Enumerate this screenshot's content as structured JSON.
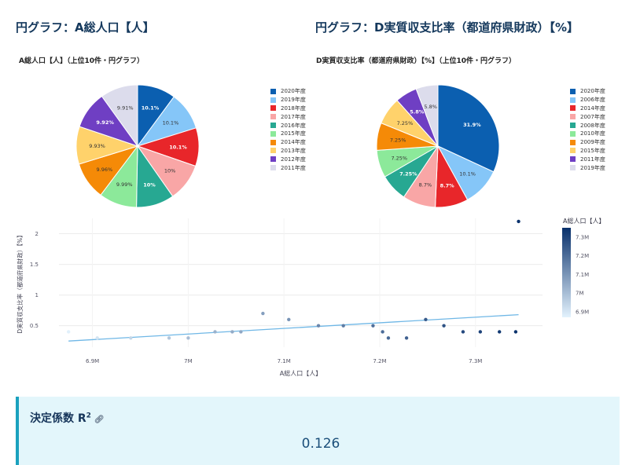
{
  "sections": {
    "pie_a_heading": "円グラフ：A総人口【人】",
    "pie_d_heading": "円グラフ：D実質収支比率（都道府県財政）【%】"
  },
  "r2": {
    "title": "決定係数 R",
    "sup": "2",
    "value": "0.126"
  },
  "chart_data": [
    {
      "type": "pie",
      "title": "A総人口【人】（上位10件・円グラフ）",
      "labels": [
        "2020年度",
        "2019年度",
        "2018年度",
        "2017年度",
        "2016年度",
        "2015年度",
        "2014年度",
        "2013年度",
        "2012年度",
        "2011年度"
      ],
      "values": [
        10.1,
        10.1,
        10.1,
        10,
        10,
        9.99,
        9.96,
        9.93,
        9.92,
        9.91
      ],
      "value_labels": [
        "10.1%",
        "10.1%",
        "10.1%",
        "10%",
        "10%",
        "9.99%",
        "9.96%",
        "9.93%",
        "9.92%",
        "9.91%"
      ],
      "colors": [
        "#0b5fb0",
        "#85c6f8",
        "#e8262a",
        "#f9a6a6",
        "#27a892",
        "#8ce99a",
        "#f58a07",
        "#ffd26b",
        "#6f3fc3",
        "#dcdcec"
      ],
      "legend_placement": "right"
    },
    {
      "type": "pie",
      "title": "D実質収支比率（都道府県財政）【%】（上位10件・円グラフ）",
      "labels": [
        "2020年度",
        "2006年度",
        "2014年度",
        "2007年度",
        "2008年度",
        "2010年度",
        "2009年度",
        "2015年度",
        "2011年度",
        "2019年度"
      ],
      "values": [
        31.9,
        10.1,
        8.7,
        8.7,
        7.25,
        7.25,
        7.25,
        7.25,
        5.8,
        5.8
      ],
      "value_labels": [
        "31.9%",
        "10.1%",
        "8.7%",
        "8.7%",
        "7.25%",
        "7.25%",
        "7.25%",
        "7.25%",
        "5.8%",
        "5.8%"
      ],
      "colors": [
        "#0b5fb0",
        "#85c6f8",
        "#e8262a",
        "#f9a6a6",
        "#27a892",
        "#8ce99a",
        "#f58a07",
        "#ffd26b",
        "#6f3fc3",
        "#dcdcec"
      ],
      "legend_placement": "right"
    },
    {
      "type": "scatter",
      "xlabel": "A総人口【人】",
      "ylabel": "D実質収支比率（都道府県財政）【%】",
      "xlim": [
        6.865,
        7.37
      ],
      "ylim": [
        0.15,
        2.25
      ],
      "x_ticks": [
        6.9,
        7.0,
        7.1,
        7.2,
        7.3
      ],
      "x_tick_labels": [
        "6.9M",
        "7M",
        "7.1M",
        "7.2M",
        "7.3M"
      ],
      "y_ticks": [
        0.5,
        1,
        1.5,
        2
      ],
      "y_tick_labels": [
        "0.5",
        "1",
        "1.5",
        "2"
      ],
      "points": [
        {
          "x": 6.875,
          "y": 0.4
        },
        {
          "x": 6.905,
          "y": 0.3
        },
        {
          "x": 6.94,
          "y": 0.3
        },
        {
          "x": 6.98,
          "y": 0.3
        },
        {
          "x": 7.0,
          "y": 0.3
        },
        {
          "x": 7.028,
          "y": 0.4
        },
        {
          "x": 7.046,
          "y": 0.4
        },
        {
          "x": 7.055,
          "y": 0.4
        },
        {
          "x": 7.078,
          "y": 0.7
        },
        {
          "x": 7.105,
          "y": 0.6
        },
        {
          "x": 7.136,
          "y": 0.5
        },
        {
          "x": 7.162,
          "y": 0.5
        },
        {
          "x": 7.193,
          "y": 0.5
        },
        {
          "x": 7.203,
          "y": 0.4
        },
        {
          "x": 7.209,
          "y": 0.3
        },
        {
          "x": 7.228,
          "y": 0.3
        },
        {
          "x": 7.248,
          "y": 0.6
        },
        {
          "x": 7.267,
          "y": 0.5
        },
        {
          "x": 7.287,
          "y": 0.4
        },
        {
          "x": 7.305,
          "y": 0.4
        },
        {
          "x": 7.325,
          "y": 0.4
        },
        {
          "x": 7.342,
          "y": 0.4
        },
        {
          "x": 7.345,
          "y": 2.2
        }
      ],
      "trendline": {
        "x0": 6.875,
        "y0": 0.25,
        "x1": 7.345,
        "y1": 0.68
      },
      "colorbar": {
        "title": "A総人口【人】",
        "range": [
          6.87,
          7.35
        ],
        "ticks": [
          6.9,
          7.0,
          7.1,
          7.2,
          7.3
        ],
        "tick_labels": [
          "6.9M",
          "7M",
          "7.1M",
          "7.2M",
          "7.3M"
        ],
        "color_low": "#e3f2fd",
        "color_high": "#08306b"
      },
      "grid": true
    }
  ]
}
